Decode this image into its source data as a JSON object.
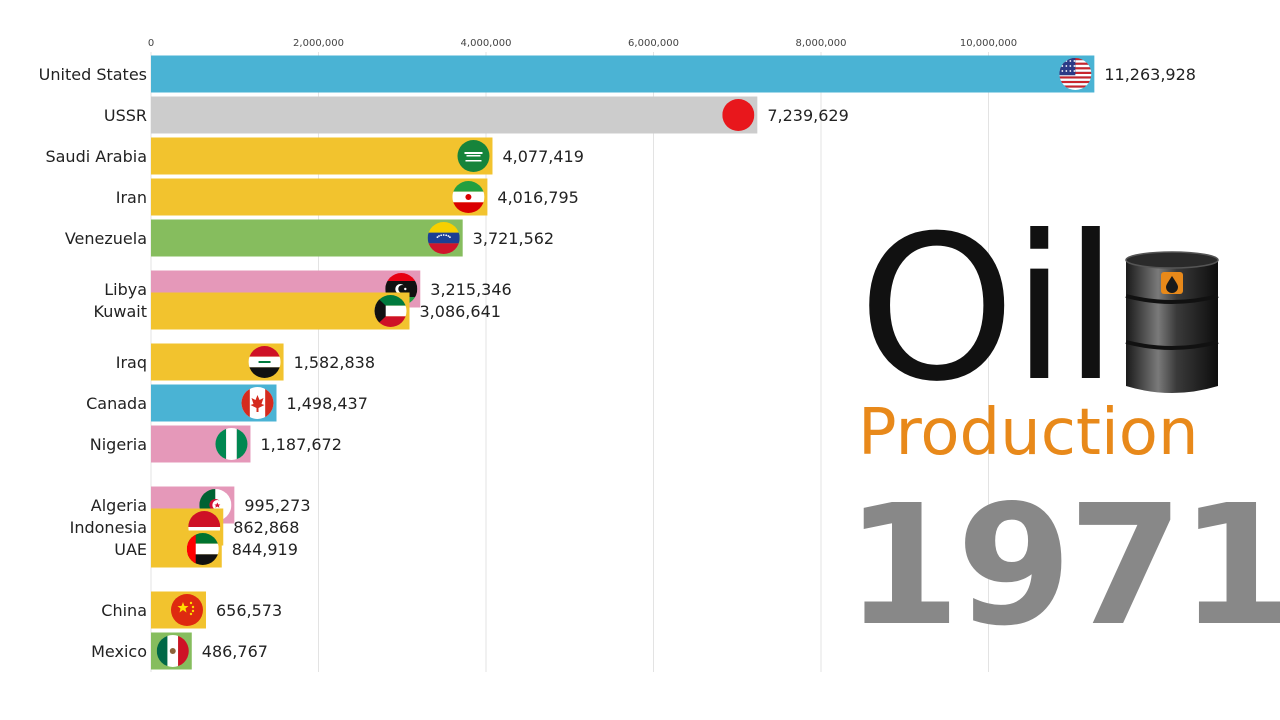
{
  "title": "Oil",
  "subtitle": "Production",
  "year": "1971",
  "colors": {
    "title": "#111111",
    "subtitle": "#e8891a",
    "year": "#888888",
    "grid": "#e3e3e3"
  },
  "chart_data": {
    "type": "bar",
    "orientation": "horizontal",
    "title": "Oil Production",
    "xlabel": "",
    "ylabel": "",
    "xlim": [
      0,
      12000000
    ],
    "ticks": [
      {
        "value": 0,
        "label": "0"
      },
      {
        "value": 2000000,
        "label": "2,000,000"
      },
      {
        "value": 4000000,
        "label": "4,000,000"
      },
      {
        "value": 6000000,
        "label": "6,000,000"
      },
      {
        "value": 8000000,
        "label": "8,000,000"
      },
      {
        "value": 10000000,
        "label": "10,000,000"
      }
    ],
    "grid": true,
    "legend": "none",
    "bars": [
      {
        "category": "United States",
        "value": 11263928,
        "label": "11,263,928",
        "color": "#4ab3d4",
        "flag": "us-flag-icon"
      },
      {
        "category": "USSR",
        "value": 7239629,
        "label": "7,239,629",
        "color": "#cccccc",
        "flag": "ussr-flag-icon"
      },
      {
        "category": "Saudi Arabia",
        "value": 4077419,
        "label": "4,077,419",
        "color": "#f2c32e",
        "flag": "saudi-flag-icon"
      },
      {
        "category": "Iran",
        "value": 4016795,
        "label": "4,016,795",
        "color": "#f2c32e",
        "flag": "iran-flag-icon"
      },
      {
        "category": "Venezuela",
        "value": 3721562,
        "label": "3,721,562",
        "color": "#86bd5e",
        "flag": "venezuela-flag-icon"
      },
      {
        "category": "Libya",
        "value": 3215346,
        "label": "3,215,346",
        "color": "#e598b9",
        "flag": "libya-flag-icon"
      },
      {
        "category": "Kuwait",
        "value": 3086641,
        "label": "3,086,641",
        "color": "#f2c32e",
        "flag": "kuwait-flag-icon"
      },
      {
        "category": "Iraq",
        "value": 1582838,
        "label": "1,582,838",
        "color": "#f2c32e",
        "flag": "iraq-flag-icon"
      },
      {
        "category": "Canada",
        "value": 1498437,
        "label": "1,498,437",
        "color": "#4ab3d4",
        "flag": "canada-flag-icon"
      },
      {
        "category": "Nigeria",
        "value": 1187672,
        "label": "1,187,672",
        "color": "#e598b9",
        "flag": "nigeria-flag-icon"
      },
      {
        "category": "Algeria",
        "value": 995273,
        "label": "995,273",
        "color": "#e598b9",
        "flag": "algeria-flag-icon"
      },
      {
        "category": "Indonesia",
        "value": 862868,
        "label": "862,868",
        "color": "#f2c32e",
        "flag": "indonesia-flag-icon"
      },
      {
        "category": "UAE",
        "value": 844919,
        "label": "844,919",
        "color": "#f2c32e",
        "flag": "uae-flag-icon"
      },
      {
        "category": "China",
        "value": 656573,
        "label": "656,573",
        "color": "#f2c32e",
        "flag": "china-flag-icon"
      },
      {
        "category": "Mexico",
        "value": 486767,
        "label": "486,767",
        "color": "#86bd5e",
        "flag": "mexico-flag-icon"
      }
    ]
  }
}
